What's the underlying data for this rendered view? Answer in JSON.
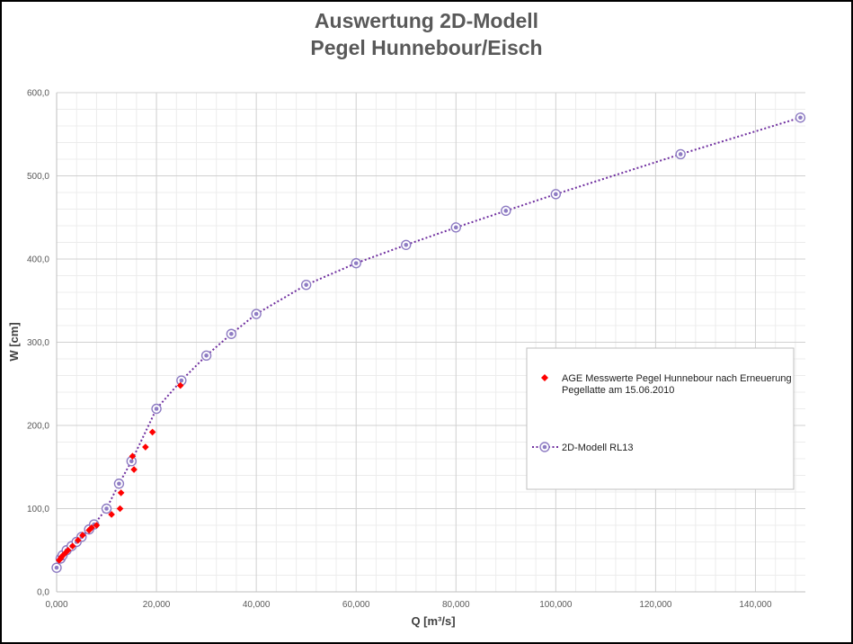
{
  "chart_data": {
    "type": "scatter",
    "title": "Auswertung 2D-Modell",
    "subtitle": "Pegel Hunnebour/Eisch",
    "xlabel": "Q [m³/s]",
    "ylabel": "W [cm]",
    "xlim": [
      0,
      150
    ],
    "ylim": [
      0,
      600
    ],
    "x_ticks": [
      "0,000",
      "20,000",
      "40,000",
      "60,000",
      "80,000",
      "100,000",
      "120,000",
      "140,000"
    ],
    "y_ticks": [
      "0,0",
      "100,0",
      "200,0",
      "300,0",
      "400,0",
      "500,0",
      "600,0"
    ],
    "grid": true,
    "legend_position": "right",
    "series": [
      {
        "name": "AGE Messwerte Pegel Hunnebour nach Erneuerung Pegellatte am 15.06.2010",
        "marker": "diamond",
        "color": "#ff0000",
        "points": [
          [
            0.5,
            38
          ],
          [
            0.8,
            40
          ],
          [
            1.0,
            42
          ],
          [
            1.3,
            44
          ],
          [
            1.8,
            47
          ],
          [
            2.3,
            50
          ],
          [
            3.2,
            55
          ],
          [
            4.3,
            62
          ],
          [
            5.2,
            68
          ],
          [
            6.5,
            74
          ],
          [
            7.0,
            77
          ],
          [
            8.0,
            80
          ],
          [
            11.0,
            93
          ],
          [
            12.7,
            100
          ],
          [
            12.9,
            119
          ],
          [
            15.5,
            147
          ],
          [
            15.2,
            163
          ],
          [
            17.8,
            174
          ],
          [
            19.2,
            192
          ],
          [
            24.8,
            248
          ]
        ]
      },
      {
        "name": "2D-Modell RL13",
        "marker": "circle",
        "line": "dotted",
        "color": "#7030a0",
        "marker_color": "#8e7cc3",
        "points": [
          [
            0.0,
            29
          ],
          [
            0.8,
            40
          ],
          [
            1.2,
            44
          ],
          [
            2.0,
            50
          ],
          [
            3.0,
            55
          ],
          [
            4.0,
            60
          ],
          [
            5.0,
            66
          ],
          [
            6.5,
            75
          ],
          [
            7.5,
            81
          ],
          [
            10.0,
            100
          ],
          [
            12.5,
            130
          ],
          [
            15.0,
            157
          ],
          [
            20.0,
            220
          ],
          [
            25.0,
            254
          ],
          [
            30.0,
            284
          ],
          [
            35.0,
            310
          ],
          [
            40.0,
            334
          ],
          [
            50.0,
            369
          ],
          [
            60.0,
            395
          ],
          [
            70.0,
            417
          ],
          [
            80.0,
            438
          ],
          [
            90.0,
            458
          ],
          [
            100.0,
            478
          ],
          [
            125.0,
            526
          ],
          [
            149.0,
            570
          ]
        ]
      }
    ]
  }
}
